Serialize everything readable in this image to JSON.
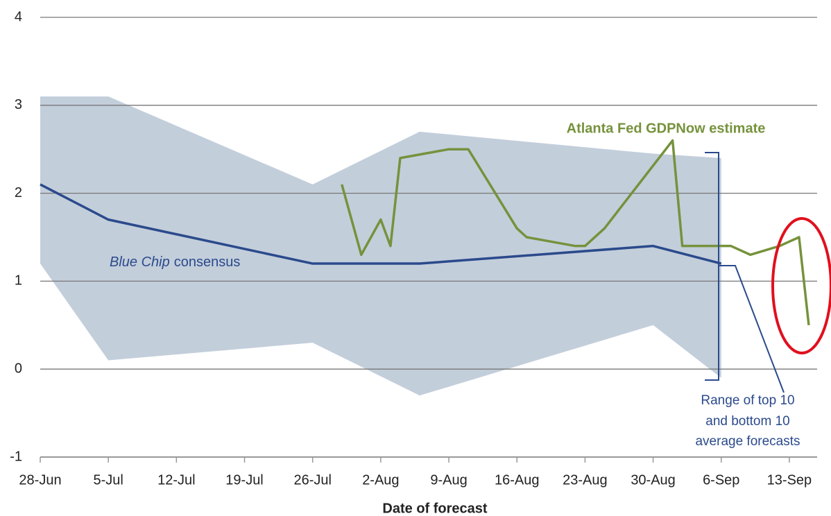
{
  "chart_data": {
    "type": "line",
    "xlabel": "Date of forecast",
    "xlim": [
      "28-Jun",
      "16-Sep"
    ],
    "xticks": [
      "28-Jun",
      "5-Jul",
      "12-Jul",
      "19-Jul",
      "26-Jul",
      "2-Aug",
      "9-Aug",
      "16-Aug",
      "23-Aug",
      "30-Aug",
      "6-Sep",
      "13-Sep"
    ],
    "ylim": [
      -1,
      4
    ],
    "yticks": [
      -1,
      0,
      1,
      2,
      3,
      4
    ],
    "grid": true,
    "band": {
      "name": "Range of top 10 and bottom 10 average forecasts",
      "color": "#c3cedb",
      "x": [
        "28-Jun",
        "5-Jul",
        "26-Jul",
        "6-Aug",
        "30-Aug",
        "6-Sep"
      ],
      "upper": [
        3.1,
        3.1,
        2.1,
        2.7,
        2.45,
        2.4
      ],
      "lower": [
        1.2,
        0.1,
        0.3,
        -0.3,
        0.5,
        -0.1
      ]
    },
    "series": [
      {
        "name": "Blue Chip consensus",
        "color": "#2b4a8c",
        "x": [
          "28-Jun",
          "5-Jul",
          "26-Jul",
          "6-Aug",
          "30-Aug",
          "6-Sep"
        ],
        "values": [
          2.1,
          1.7,
          1.2,
          1.2,
          1.4,
          1.2
        ]
      },
      {
        "name": "Atlanta Fed GDPNow estimate",
        "color": "#76923c",
        "x": [
          "29-Jul",
          "31-Jul",
          "2-Aug",
          "3-Aug",
          "4-Aug",
          "9-Aug",
          "11-Aug",
          "16-Aug",
          "17-Aug",
          "22-Aug",
          "23-Aug",
          "25-Aug",
          "1-Sep",
          "2-Sep",
          "7-Sep",
          "9-Sep",
          "12-Sep",
          "14-Sep",
          "15-Sep"
        ],
        "values": [
          2.1,
          1.3,
          1.7,
          1.4,
          2.4,
          2.5,
          2.5,
          1.6,
          1.5,
          1.4,
          1.4,
          1.6,
          2.6,
          1.4,
          1.4,
          1.3,
          1.4,
          1.5,
          0.5
        ]
      }
    ],
    "annotations": {
      "gdpnow": "Atlanta Fed GDPNow estimate",
      "bluechip_italic": "Blue Chip",
      "bluechip_rest": "consensus",
      "range_lines": [
        "Range of top 10",
        "and bottom 10",
        "average forecasts"
      ]
    }
  }
}
